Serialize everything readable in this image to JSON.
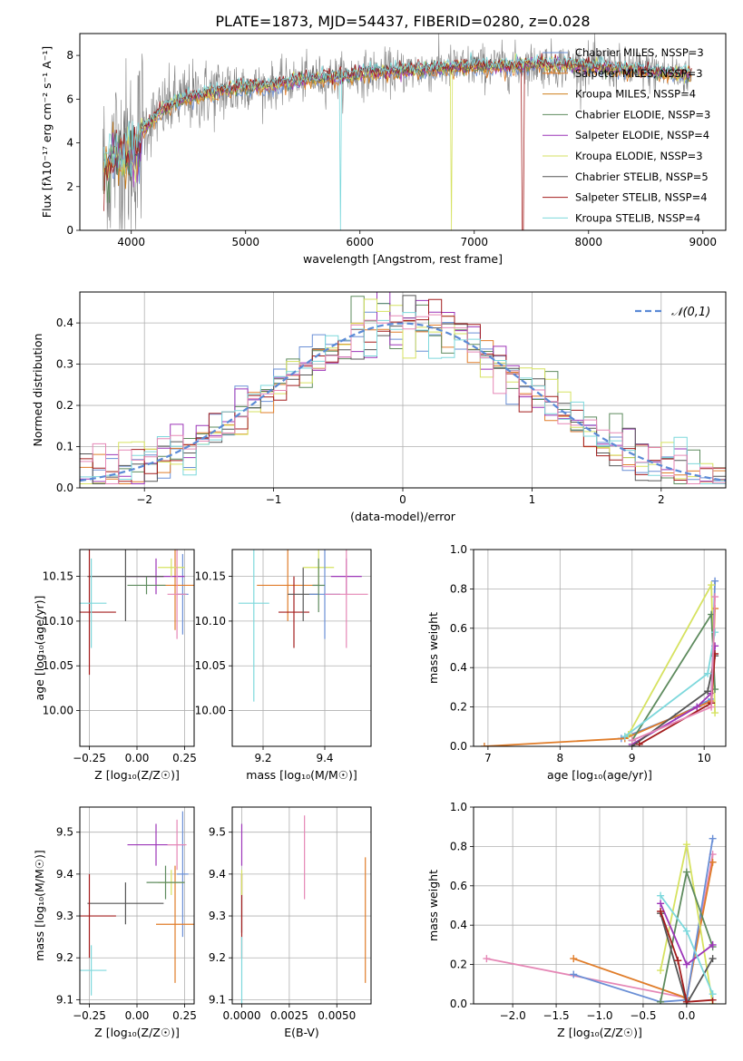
{
  "figure_title": "PLATE=1873, MJD=54437, FIBERID=0280, z=0.028",
  "colors": [
    "#6a8fd6",
    "#e07d2a",
    "#cf7f1c",
    "#5e8b5e",
    "#9c35b8",
    "#d6e260",
    "#555555",
    "#a31d1d",
    "#7dd8dc",
    "#e587b6"
  ],
  "chart_data": [
    {
      "type": "line",
      "title": "PLATE=1873, MJD=54437, FIBERID=0280, z=0.028",
      "xlabel": "wavelength [Angstrom, rest frame]",
      "ylabel": "Flux [fλ10⁻¹⁷ erg cm⁻² s⁻¹ A⁻¹]",
      "xlim": [
        3550,
        9200
      ],
      "ylim": [
        0,
        9
      ],
      "xticks": [
        4000,
        5000,
        6000,
        7000,
        8000,
        9000
      ],
      "yticks": [
        0,
        2,
        4,
        6,
        8
      ],
      "legend_position": "top-right",
      "legend": [
        "Chabrier MILES, NSSP=3",
        "Salpeter MILES, NSSP=3",
        "Kroupa MILES, NSSP=4",
        "Chabrier ELODIE, NSSP=3",
        "Salpeter ELODIE, NSSP=4",
        "Kroupa ELODIE, NSSP=3",
        "Chabrier STELIB, NSSP=5",
        "Salpeter STELIB, NSSP=4",
        "Kroupa STELIB, NSSP=4"
      ],
      "spectrum_shape": [
        [
          3750,
          2.5
        ],
        [
          3850,
          3.5
        ],
        [
          3950,
          3.4
        ],
        [
          4050,
          3.6
        ],
        [
          4100,
          4.6
        ],
        [
          4250,
          5.4
        ],
        [
          4400,
          5.9
        ],
        [
          4600,
          6.2
        ],
        [
          4800,
          6.4
        ],
        [
          5000,
          6.6
        ],
        [
          5200,
          6.6
        ],
        [
          5500,
          6.9
        ],
        [
          5800,
          7.0
        ],
        [
          6100,
          7.2
        ],
        [
          6400,
          7.3
        ],
        [
          6700,
          7.4
        ],
        [
          7000,
          7.5
        ],
        [
          7300,
          7.5
        ],
        [
          7600,
          7.6
        ],
        [
          8000,
          7.5
        ],
        [
          8500,
          7.3
        ],
        [
          8900,
          7.1
        ]
      ]
    },
    {
      "type": "histogram",
      "xlabel": "(data-model)/error",
      "ylabel": "Normed distribution",
      "xlim": [
        -2.5,
        2.5
      ],
      "ylim": [
        0,
        0.475
      ],
      "xticks": [
        -2,
        -1,
        0,
        1,
        2
      ],
      "yticks": [
        0.0,
        0.1,
        0.2,
        0.3,
        0.4
      ],
      "legend": [
        "𝒩(0,1)"
      ],
      "legend_position": "top-right",
      "bin_width": 0.1
    },
    {
      "type": "scatter",
      "xlabel": "Z [log₁₀(Z/Z☉)]",
      "ylabel": "age  [log₁₀(age/yr)]",
      "xlim": [
        -0.3,
        0.3
      ],
      "ylim": [
        9.96,
        10.18
      ],
      "xticks": [
        -0.25,
        0.0,
        0.25
      ],
      "yticks": [
        10.0,
        10.05,
        10.1,
        10.15
      ],
      "points": [
        {
          "x": 0.24,
          "y": 10.13,
          "xerr": 0.03,
          "yerr": 0.045,
          "c": 0
        },
        {
          "x": 0.2,
          "y": 10.14,
          "xerr": 0.1,
          "yerr": 0.05,
          "c": 1
        },
        {
          "x": 0.1,
          "y": 10.15,
          "xerr": 0.15,
          "yerr": 0.02,
          "c": 4
        },
        {
          "x": 0.18,
          "y": 10.16,
          "xerr": 0.07,
          "yerr": 0.01,
          "c": 5
        },
        {
          "x": 0.21,
          "y": 10.13,
          "xerr": 0.05,
          "yerr": 0.05,
          "c": 9
        },
        {
          "x": -0.06,
          "y": 10.15,
          "xerr": 0.2,
          "yerr": 0.05,
          "c": 6
        },
        {
          "x": -0.25,
          "y": 10.11,
          "xerr": 0.14,
          "yerr": 0.07,
          "c": 7
        },
        {
          "x": -0.24,
          "y": 10.12,
          "xerr": 0.08,
          "yerr": 0.05,
          "c": 8
        },
        {
          "x": 0.05,
          "y": 10.14,
          "xerr": 0.1,
          "yerr": 0.01,
          "c": 3
        }
      ]
    },
    {
      "type": "scatter",
      "xlabel": "mass [log₁₀(M/M☉)]",
      "ylabel": "",
      "xlim": [
        9.1,
        9.55
      ],
      "ylim": [
        9.96,
        10.18
      ],
      "xticks": [
        9.2,
        9.4
      ],
      "yticks": [
        10.0,
        10.05,
        10.1,
        10.15
      ],
      "points": [
        {
          "x": 9.17,
          "y": 10.12,
          "xerr": 0.05,
          "yerr": 0.11,
          "c": 8
        },
        {
          "x": 9.28,
          "y": 10.14,
          "xerr": 0.1,
          "yerr": 0.04,
          "c": 1
        },
        {
          "x": 9.3,
          "y": 10.11,
          "xerr": 0.05,
          "yerr": 0.04,
          "c": 7
        },
        {
          "x": 9.33,
          "y": 10.13,
          "xerr": 0.05,
          "yerr": 0.03,
          "c": 6
        },
        {
          "x": 9.38,
          "y": 10.16,
          "xerr": 0.05,
          "yerr": 0.02,
          "c": 5
        },
        {
          "x": 9.4,
          "y": 10.13,
          "xerr": 0.05,
          "yerr": 0.05,
          "c": 0
        },
        {
          "x": 9.47,
          "y": 10.15,
          "xerr": 0.05,
          "yerr": 0.02,
          "c": 4
        },
        {
          "x": 9.47,
          "y": 10.13,
          "xerr": 0.07,
          "yerr": 0.06,
          "c": 9
        },
        {
          "x": 9.38,
          "y": 10.14,
          "xerr": 0.02,
          "yerr": 0.03,
          "c": 3
        }
      ]
    },
    {
      "type": "line",
      "xlabel": "age  [log₁₀(age/yr)]",
      "ylabel": "mass weight",
      "xlim": [
        6.8,
        10.3
      ],
      "ylim": [
        0,
        1.0
      ],
      "xticks": [
        7,
        8,
        9,
        10
      ],
      "yticks": [
        0.0,
        0.2,
        0.4,
        0.6,
        0.8,
        1.0
      ],
      "series": [
        {
          "c": 0,
          "points": [
            [
              8.85,
              0.04
            ],
            [
              9.6,
              0.15
            ],
            [
              10.1,
              0.24
            ],
            [
              10.15,
              0.84
            ]
          ]
        },
        {
          "c": 1,
          "points": [
            [
              6.95,
              0.0
            ],
            [
              8.9,
              0.04
            ],
            [
              10.1,
              0.23
            ],
            [
              10.15,
              0.7
            ]
          ]
        },
        {
          "c": 4,
          "points": [
            [
              9.0,
              0.01
            ],
            [
              9.9,
              0.2
            ],
            [
              10.1,
              0.27
            ],
            [
              10.15,
              0.51
            ]
          ]
        },
        {
          "c": 5,
          "points": [
            [
              8.95,
              0.06
            ],
            [
              10.1,
              0.82
            ],
            [
              10.15,
              0.17
            ]
          ]
        },
        {
          "c": 3,
          "points": [
            [
              9.0,
              0.03
            ],
            [
              10.1,
              0.67
            ],
            [
              10.15,
              0.29
            ]
          ]
        },
        {
          "c": 6,
          "points": [
            [
              9.0,
              0.0
            ],
            [
              10.05,
              0.28
            ],
            [
              10.15,
              0.46
            ]
          ]
        },
        {
          "c": 7,
          "points": [
            [
              9.1,
              0.01
            ],
            [
              10.1,
              0.22
            ],
            [
              10.15,
              0.47
            ]
          ]
        },
        {
          "c": 8,
          "points": [
            [
              8.9,
              0.05
            ],
            [
              10.05,
              0.37
            ],
            [
              10.15,
              0.58
            ]
          ]
        },
        {
          "c": 9,
          "points": [
            [
              9.0,
              0.03
            ],
            [
              10.1,
              0.2
            ],
            [
              10.15,
              0.76
            ]
          ]
        }
      ]
    },
    {
      "type": "scatter",
      "xlabel": "Z [log₁₀(Z/Z☉)]",
      "ylabel": "mass [log₁₀(M/M☉)]",
      "xlim": [
        -0.3,
        0.3
      ],
      "ylim": [
        9.09,
        9.56
      ],
      "xticks": [
        -0.25,
        0.0,
        0.25
      ],
      "yticks": [
        9.1,
        9.2,
        9.3,
        9.4,
        9.5
      ],
      "points": [
        {
          "x": 0.24,
          "y": 9.4,
          "xerr": 0.03,
          "yerr": 0.15,
          "c": 0
        },
        {
          "x": 0.2,
          "y": 9.28,
          "xerr": 0.1,
          "yerr": 0.14,
          "c": 1
        },
        {
          "x": 0.1,
          "y": 9.47,
          "xerr": 0.15,
          "yerr": 0.05,
          "c": 4
        },
        {
          "x": 0.18,
          "y": 9.38,
          "xerr": 0.07,
          "yerr": 0.03,
          "c": 5
        },
        {
          "x": 0.21,
          "y": 9.47,
          "xerr": 0.05,
          "yerr": 0.06,
          "c": 9
        },
        {
          "x": -0.06,
          "y": 9.33,
          "xerr": 0.2,
          "yerr": 0.05,
          "c": 6
        },
        {
          "x": -0.25,
          "y": 9.3,
          "xerr": 0.14,
          "yerr": 0.1,
          "c": 7
        },
        {
          "x": -0.24,
          "y": 9.17,
          "xerr": 0.08,
          "yerr": 0.06,
          "c": 8
        },
        {
          "x": 0.15,
          "y": 9.38,
          "xerr": 0.1,
          "yerr": 0.04,
          "c": 3
        }
      ]
    },
    {
      "type": "scatter",
      "xlabel": "E(B-V)",
      "ylabel": "",
      "xlim": [
        -0.0005,
        0.0068
      ],
      "ylim": [
        9.09,
        9.56
      ],
      "xticks": [
        0.0,
        0.0025,
        0.005
      ],
      "yticks": [
        9.1,
        9.2,
        9.3,
        9.4,
        9.5
      ],
      "points": [
        {
          "x": 0.0,
          "y": 9.47,
          "xerr": 0,
          "yerr": 0.05,
          "c": 4
        },
        {
          "x": 0.0,
          "y": 9.33,
          "xerr": 0,
          "yerr": 0.07,
          "c": 6
        },
        {
          "x": 0.0,
          "y": 9.3,
          "xerr": 0,
          "yerr": 0.1,
          "c": 7
        },
        {
          "x": 0.0,
          "y": 9.17,
          "xerr": 0,
          "yerr": 0.08,
          "c": 8
        },
        {
          "x": 0.0,
          "y": 9.38,
          "xerr": 0,
          "yerr": 0.03,
          "c": 5
        },
        {
          "x": 0.0033,
          "y": 9.44,
          "xerr": 0,
          "yerr": 0.1,
          "c": 9
        },
        {
          "x": 0.0065,
          "y": 9.29,
          "xerr": 0,
          "yerr": 0.15,
          "c": 1
        }
      ]
    },
    {
      "type": "line",
      "xlabel": "Z [log₁₀(Z/Z☉)]",
      "ylabel": "mass weight",
      "xlim": [
        -2.45,
        0.45
      ],
      "ylim": [
        0,
        1.0
      ],
      "xticks": [
        -2.0,
        -1.5,
        -1.0,
        -0.5,
        0.0
      ],
      "yticks": [
        0.0,
        0.2,
        0.4,
        0.6,
        0.8,
        1.0
      ],
      "series": [
        {
          "c": 9,
          "points": [
            [
              -2.3,
              0.23
            ],
            [
              0.0,
              0.03
            ],
            [
              0.3,
              0.76
            ]
          ]
        },
        {
          "c": 1,
          "points": [
            [
              -1.3,
              0.23
            ],
            [
              0.0,
              0.03
            ],
            [
              0.3,
              0.72
            ]
          ]
        },
        {
          "c": 0,
          "points": [
            [
              -1.3,
              0.15
            ],
            [
              -0.3,
              0.01
            ],
            [
              0.0,
              0.02
            ],
            [
              0.3,
              0.84
            ]
          ]
        },
        {
          "c": 5,
          "points": [
            [
              -0.3,
              0.17
            ],
            [
              0.0,
              0.81
            ],
            [
              0.3,
              0.0
            ]
          ]
        },
        {
          "c": 3,
          "points": [
            [
              -0.3,
              0.01
            ],
            [
              0.0,
              0.67
            ],
            [
              0.3,
              0.29
            ]
          ]
        },
        {
          "c": 4,
          "points": [
            [
              -0.3,
              0.51
            ],
            [
              0.0,
              0.2
            ],
            [
              0.3,
              0.3
            ]
          ]
        },
        {
          "c": 6,
          "points": [
            [
              -0.3,
              0.46
            ],
            [
              0.0,
              0.0
            ],
            [
              0.3,
              0.23
            ]
          ]
        },
        {
          "c": 7,
          "points": [
            [
              -0.3,
              0.47
            ],
            [
              -0.1,
              0.22
            ],
            [
              0.0,
              0.01
            ],
            [
              0.3,
              0.02
            ]
          ]
        },
        {
          "c": 8,
          "points": [
            [
              -0.3,
              0.55
            ],
            [
              0.0,
              0.37
            ],
            [
              0.3,
              0.05
            ]
          ]
        }
      ]
    }
  ]
}
